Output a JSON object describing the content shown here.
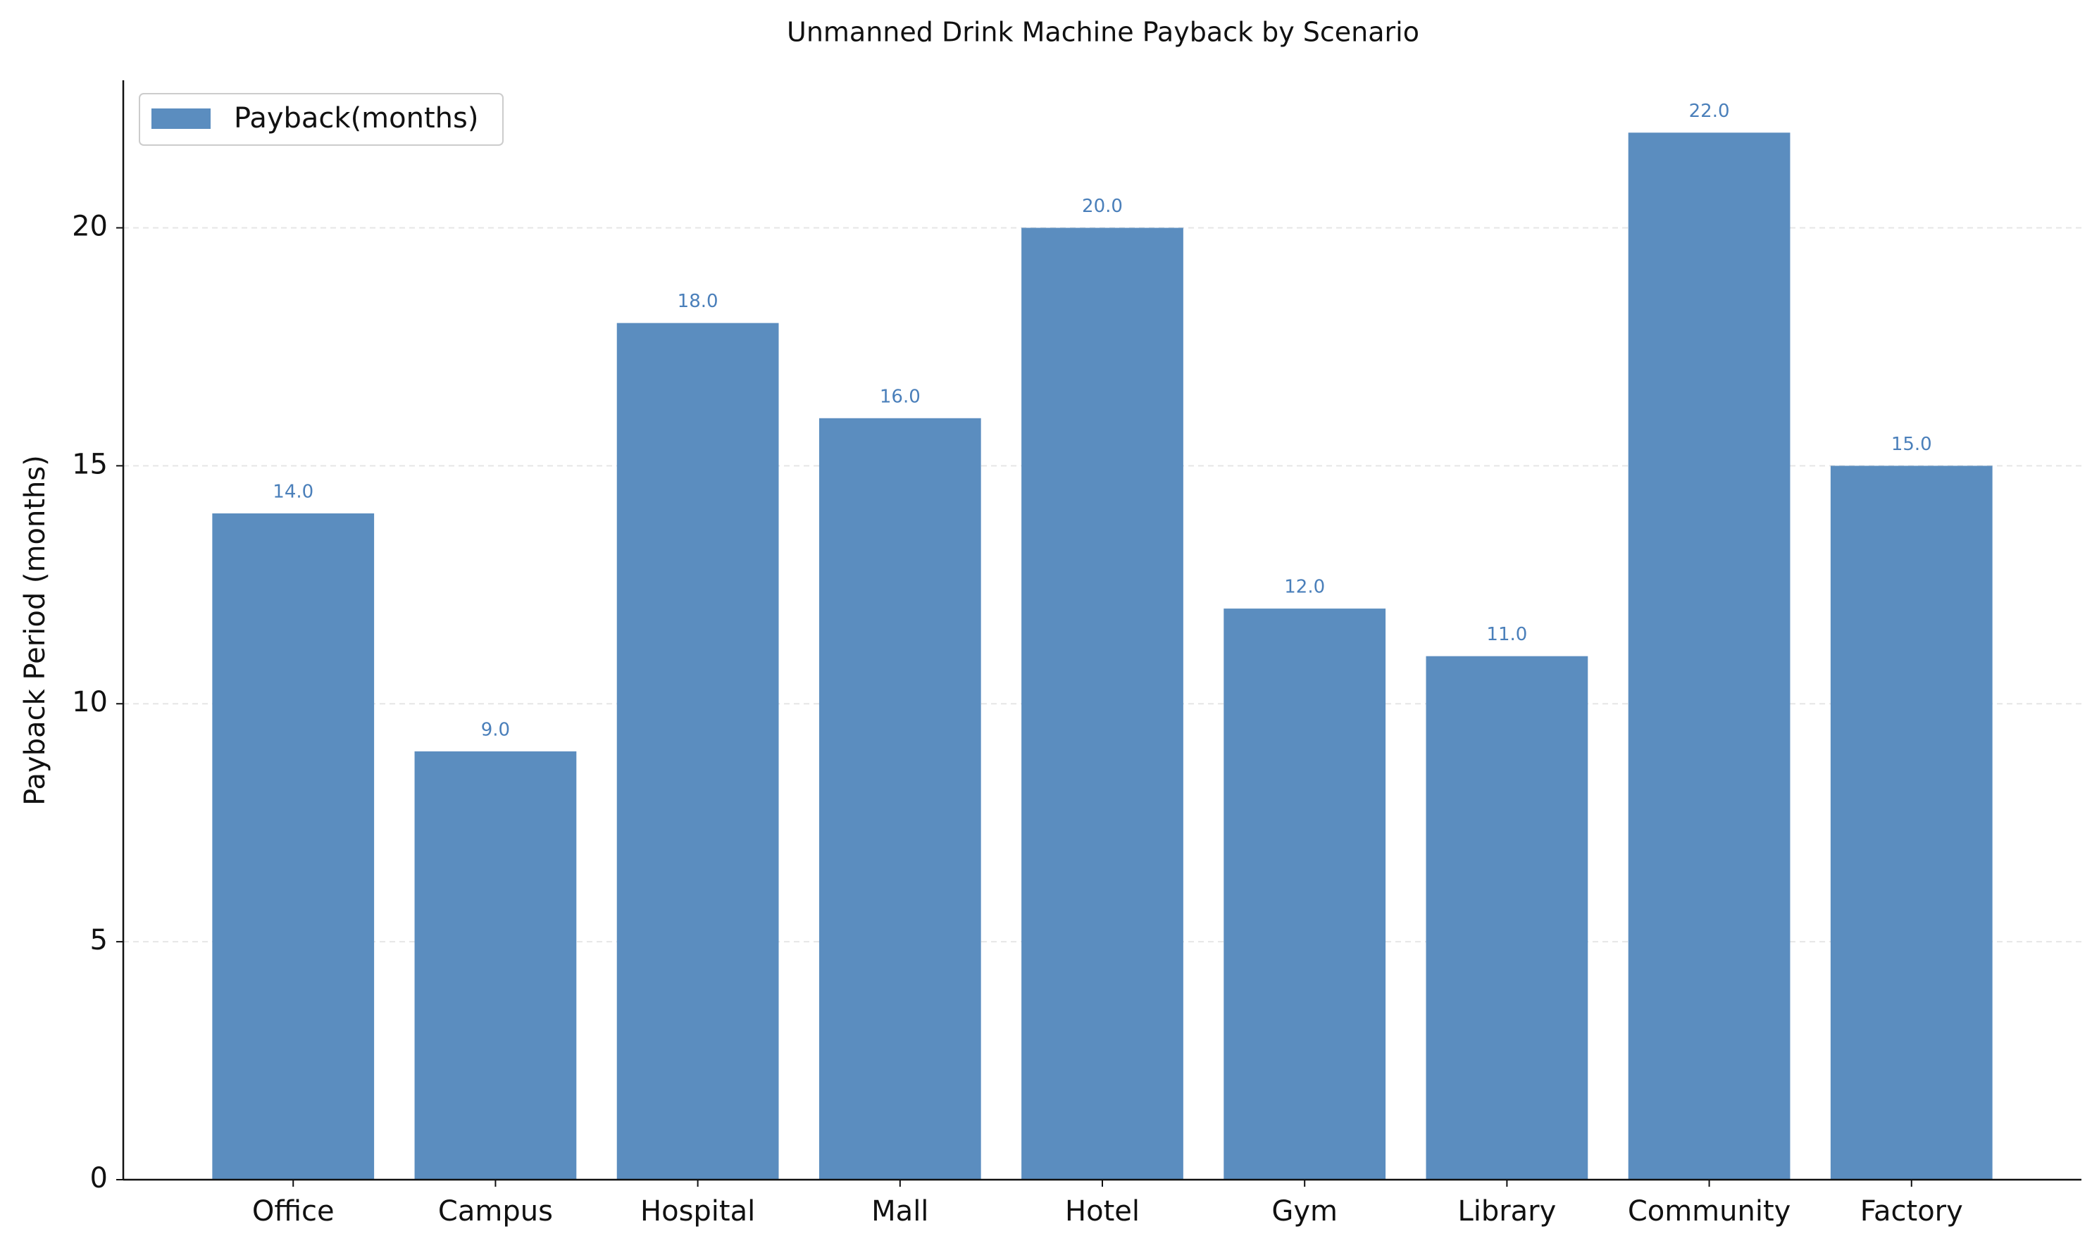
{
  "chart_data": {
    "type": "bar",
    "title": "Unmanned Drink Machine Payback by Scenario",
    "y_label": "Payback Period (months)",
    "categories": [
      "Office",
      "Campus",
      "Hospital",
      "Mall",
      "Hotel",
      "Gym",
      "Library",
      "Community",
      "Factory"
    ],
    "series": [
      {
        "name": "Payback(months)",
        "color": "#5b8dbf",
        "values": [
          14,
          9,
          18,
          16,
          20,
          12,
          11,
          22,
          15
        ],
        "value_labels": [
          "14.0",
          "9.0",
          "18.0",
          "16.0",
          "20.0",
          "12.0",
          "11.0",
          "22.0",
          "15.0"
        ]
      }
    ],
    "ylim": [
      0,
      23.1
    ],
    "yticks": [
      0,
      5,
      10,
      15,
      20
    ],
    "grid": true,
    "legend": "upper left"
  }
}
